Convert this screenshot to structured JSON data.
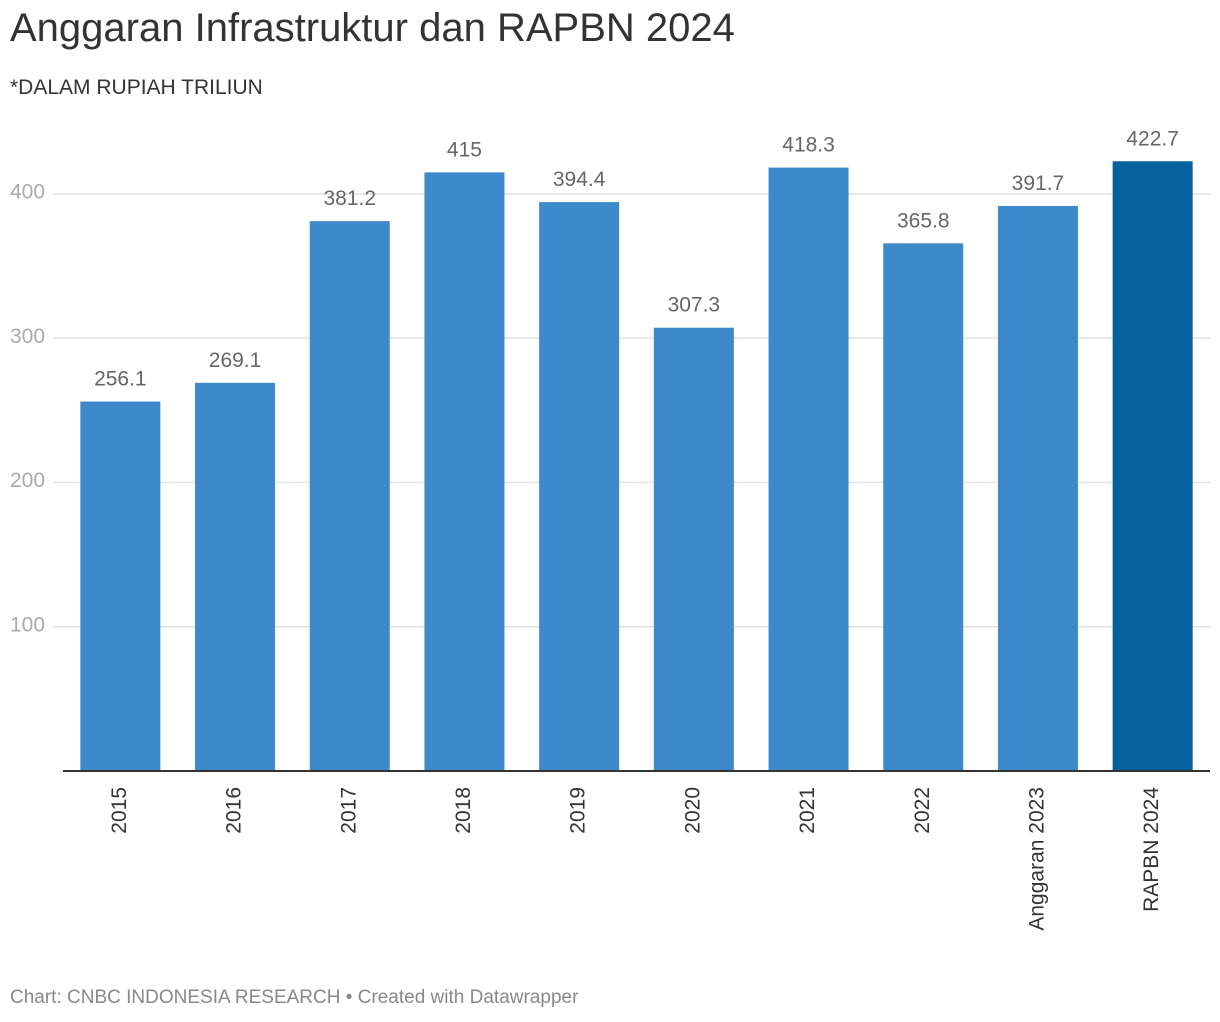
{
  "title": "Anggaran Infrastruktur dan RAPBN 2024",
  "subtitle": "*DALAM RUPIAH TRILIUN",
  "footer": {
    "source": "Chart: CNBC INDONESIA RESEARCH",
    "separator": "•",
    "created": "Created with Datawrapper"
  },
  "chart_data": {
    "type": "bar",
    "title": "Anggaran Infrastruktur dan RAPBN 2024",
    "subtitle": "*DALAM RUPIAH TRILIUN",
    "xlabel": "",
    "ylabel": "",
    "ylim": [
      0,
      422.7
    ],
    "yticks": [
      100,
      200,
      300,
      400
    ],
    "grid": true,
    "categories": [
      "2015",
      "2016",
      "2017",
      "2018",
      "2019",
      "2020",
      "2021",
      "2022",
      "Anggaran 2023",
      "RAPBN 2024"
    ],
    "values": [
      256.1,
      269.1,
      381.2,
      415,
      394.4,
      307.3,
      418.3,
      365.8,
      391.7,
      422.7
    ],
    "value_labels": [
      "256.1",
      "269.1",
      "381.2",
      "415",
      "394.4",
      "307.3",
      "418.3",
      "365.8",
      "391.7",
      "422.7"
    ],
    "colors": {
      "default_bar": "#3e89c9",
      "highlight_bar": "#08609d",
      "highlight_category": "RAPBN 2024",
      "gridline": "#e2e2e2",
      "baseline": "#333333"
    }
  }
}
